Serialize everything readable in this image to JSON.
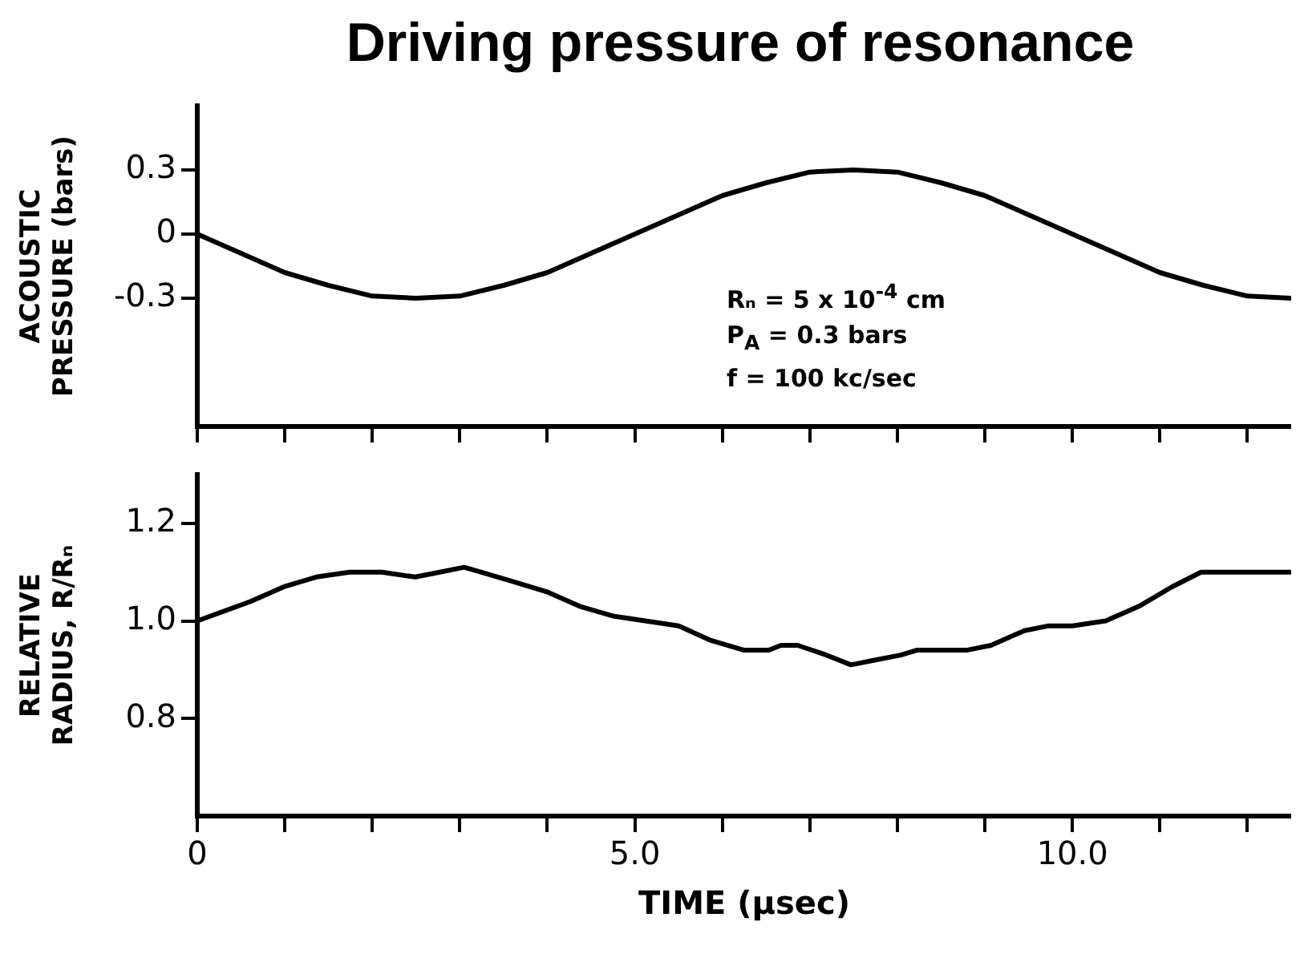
{
  "chart_data": [
    {
      "type": "line",
      "title": "Driving pressure of resonance",
      "ylabel": "ACOUSTIC PRESSURE (bars)",
      "annotations": [
        "Rₙ = 5 x 10$^{-4}$ cm",
        "P$_{A}$ = 0.3 bars",
        "f = 100 kc/sec"
      ],
      "series": [
        {
          "color": "#000000",
          "x": [
            0,
            0.5,
            1,
            1.5,
            2,
            2.5,
            3,
            3.5,
            4,
            4.5,
            5,
            5.5,
            6,
            6.5,
            7,
            7.5,
            8,
            8.5,
            9,
            9.5,
            10,
            10.5,
            11,
            11.5,
            12,
            12.5
          ],
          "values": [
            0,
            -0.09,
            -0.18,
            -0.24,
            -0.29,
            -0.3,
            -0.29,
            -0.24,
            -0.18,
            -0.09,
            0,
            0.09,
            0.18,
            0.24,
            0.29,
            0.3,
            0.29,
            0.24,
            0.18,
            0.09,
            0,
            -0.09,
            -0.18,
            -0.24,
            -0.29,
            -0.3
          ]
        }
      ],
      "xlim": [
        0,
        12.5
      ],
      "xticks": [
        0,
        1,
        2,
        3,
        4,
        5,
        6,
        7,
        8,
        9,
        10,
        11,
        12
      ],
      "ylim": [
        -0.9,
        0.6
      ],
      "yticks": [
        -0.3,
        0,
        0.3
      ],
      "tick_labels": "y",
      "grid": false,
      "legend": false,
      "marker": "none",
      "line_style": "solid"
    },
    {
      "type": "line",
      "xlabel": "TIME (μsec)",
      "ylabel": "RELATIVE RADIUS, R/Rₙ",
      "series": [
        {
          "color": "#000000",
          "x": [
            0,
            0.61,
            0.99,
            1.36,
            1.74,
            2.11,
            2.49,
            2.77,
            3.05,
            3.24,
            3.62,
            3.99,
            4.37,
            4.75,
            5.12,
            5.5,
            5.87,
            6.25,
            6.53,
            6.67,
            6.86,
            7.19,
            7.47,
            7.75,
            8.04,
            8.22,
            8.51,
            8.79,
            9.07,
            9.45,
            9.73,
            10,
            10.38,
            10.76,
            11.14,
            11.47,
            11.79,
            12.17,
            12.5
          ],
          "values": [
            1,
            1.04,
            1.07,
            1.09,
            1.1,
            1.1,
            1.09,
            1.1,
            1.11,
            1.1,
            1.08,
            1.06,
            1.03,
            1.01,
            1,
            0.99,
            0.96,
            0.94,
            0.94,
            0.95,
            0.95,
            0.93,
            0.91,
            0.92,
            0.93,
            0.94,
            0.94,
            0.94,
            0.95,
            0.98,
            0.99,
            0.99,
            1,
            1.03,
            1.07,
            1.1,
            1.1,
            1.1,
            1.1
          ]
        }
      ],
      "xlim": [
        0,
        12.5
      ],
      "xticks": [
        {
          "value": 0,
          "label": "0"
        },
        {
          "value": 1,
          "label": null
        },
        {
          "value": 2,
          "label": null
        },
        {
          "value": 3,
          "label": null
        },
        {
          "value": 4,
          "label": null
        },
        {
          "value": 5,
          "label": "5.0"
        },
        {
          "value": 6,
          "label": null
        },
        {
          "value": 7,
          "label": null
        },
        {
          "value": 8,
          "label": null
        },
        {
          "value": 9,
          "label": null
        },
        {
          "value": 10,
          "label": "10.0"
        },
        {
          "value": 11,
          "label": null
        },
        {
          "value": 12,
          "label": null
        }
      ],
      "ylim": [
        0.6,
        1.3
      ],
      "yticks": [
        {
          "value": 0.8,
          "label": "0.8"
        },
        {
          "value": 1,
          "label": "1.0"
        },
        {
          "value": 1.2,
          "label": "1.2"
        }
      ],
      "grid": false,
      "legend": false,
      "marker": "none",
      "line_style": "solid"
    }
  ]
}
